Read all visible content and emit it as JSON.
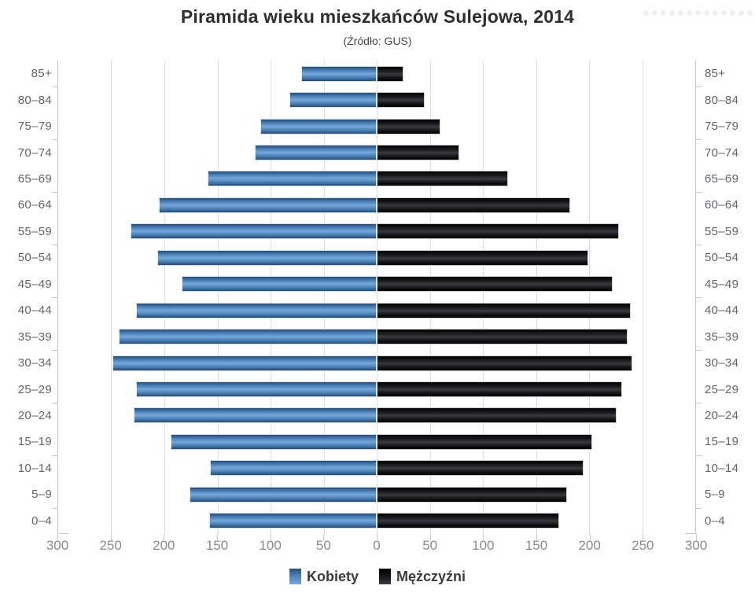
{
  "title": "Piramida wieku mieszkańców Sulejowa, 2014",
  "subtitle": "(Źródło: GUS)",
  "colors": {
    "female_base": "#4d82b8",
    "female_light": "#74a7da",
    "female_dark": "#234d78",
    "male_base": "#1b1b1f",
    "male_light": "#39393f",
    "male_dark": "#000000",
    "grid": "#dcdce0",
    "axis": "#c6c6cc",
    "x_label": "#8a8a90",
    "y_label": "#63636b",
    "title": "#2e2e32",
    "subtitle": "#47474d",
    "legend_label": "#3b3b40"
  },
  "decor": {
    "top_right_dots": 13
  },
  "chart_data": {
    "type": "bar",
    "variant": "population-pyramid",
    "title": "Piramida wieku mieszkańców Sulejowa, 2014",
    "subtitle": "(Źródło: GUS)",
    "categories": [
      "85+",
      "80–84",
      "75–79",
      "70–74",
      "65–69",
      "60–64",
      "55–59",
      "50–54",
      "45–49",
      "40–44",
      "35–39",
      "30–34",
      "25–29",
      "20–24",
      "15–19",
      "10–14",
      "5–9",
      "0–4"
    ],
    "series": [
      {
        "name": "Kobiety",
        "color": "#4d82b8",
        "side": "left",
        "values": [
          71,
          82,
          110,
          115,
          159,
          205,
          232,
          207,
          184,
          227,
          243,
          249,
          227,
          229,
          194,
          157,
          176,
          158
        ]
      },
      {
        "name": "Mężczyźni",
        "color": "#1b1b1f",
        "side": "right",
        "values": [
          25,
          45,
          60,
          78,
          124,
          182,
          228,
          199,
          222,
          239,
          236,
          241,
          231,
          226,
          203,
          195,
          179,
          172
        ]
      }
    ],
    "xlim": [
      -300,
      300
    ],
    "xtick_positions": [
      -300,
      -250,
      -200,
      -150,
      -100,
      -50,
      0,
      50,
      100,
      150,
      200,
      250,
      300
    ],
    "xtick_labels": [
      "300",
      "250",
      "200",
      "150",
      "100",
      "50",
      "0",
      "50",
      "100",
      "150",
      "200",
      "250",
      "300"
    ],
    "grid": true,
    "legend_position": "bottom",
    "y_axis_labels": "both-sides"
  }
}
